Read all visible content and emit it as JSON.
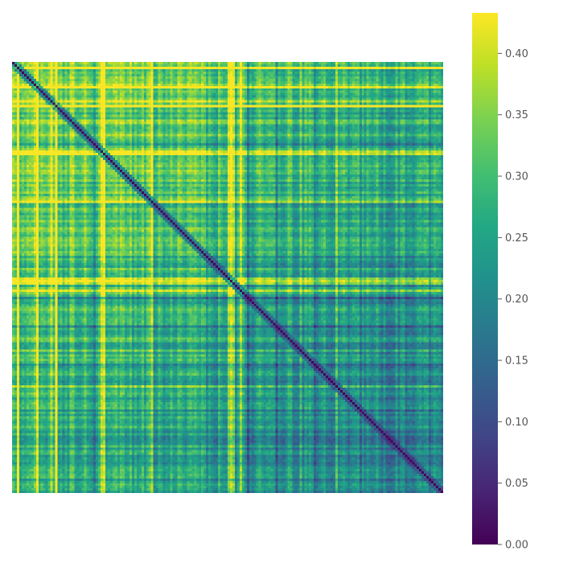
{
  "chart_data": {
    "type": "heatmap",
    "title": "",
    "xlabel": "",
    "ylabel": "",
    "matrix_size": 180,
    "symmetric": true,
    "diagonal_value": 0.0,
    "value_range": [
      0.0,
      0.433
    ],
    "colormap": "viridis",
    "axes_visible": false,
    "colorbar": {
      "position": "right",
      "ticks": [
        {
          "value": 0.0,
          "label": "0.00"
        },
        {
          "value": 0.05,
          "label": "0.05"
        },
        {
          "value": 0.1,
          "label": "0.10"
        },
        {
          "value": 0.15,
          "label": "0.15"
        },
        {
          "value": 0.2,
          "label": "0.20"
        },
        {
          "value": 0.25,
          "label": "0.25"
        },
        {
          "value": 0.3,
          "label": "0.30"
        },
        {
          "value": 0.35,
          "label": "0.35"
        },
        {
          "value": 0.4,
          "label": "0.40"
        }
      ]
    },
    "note_values": "Pairwise distance-like matrix; zero diagonal, higher values (yellow) toward the top-left, lower values (purple) toward the bottom-right."
  }
}
